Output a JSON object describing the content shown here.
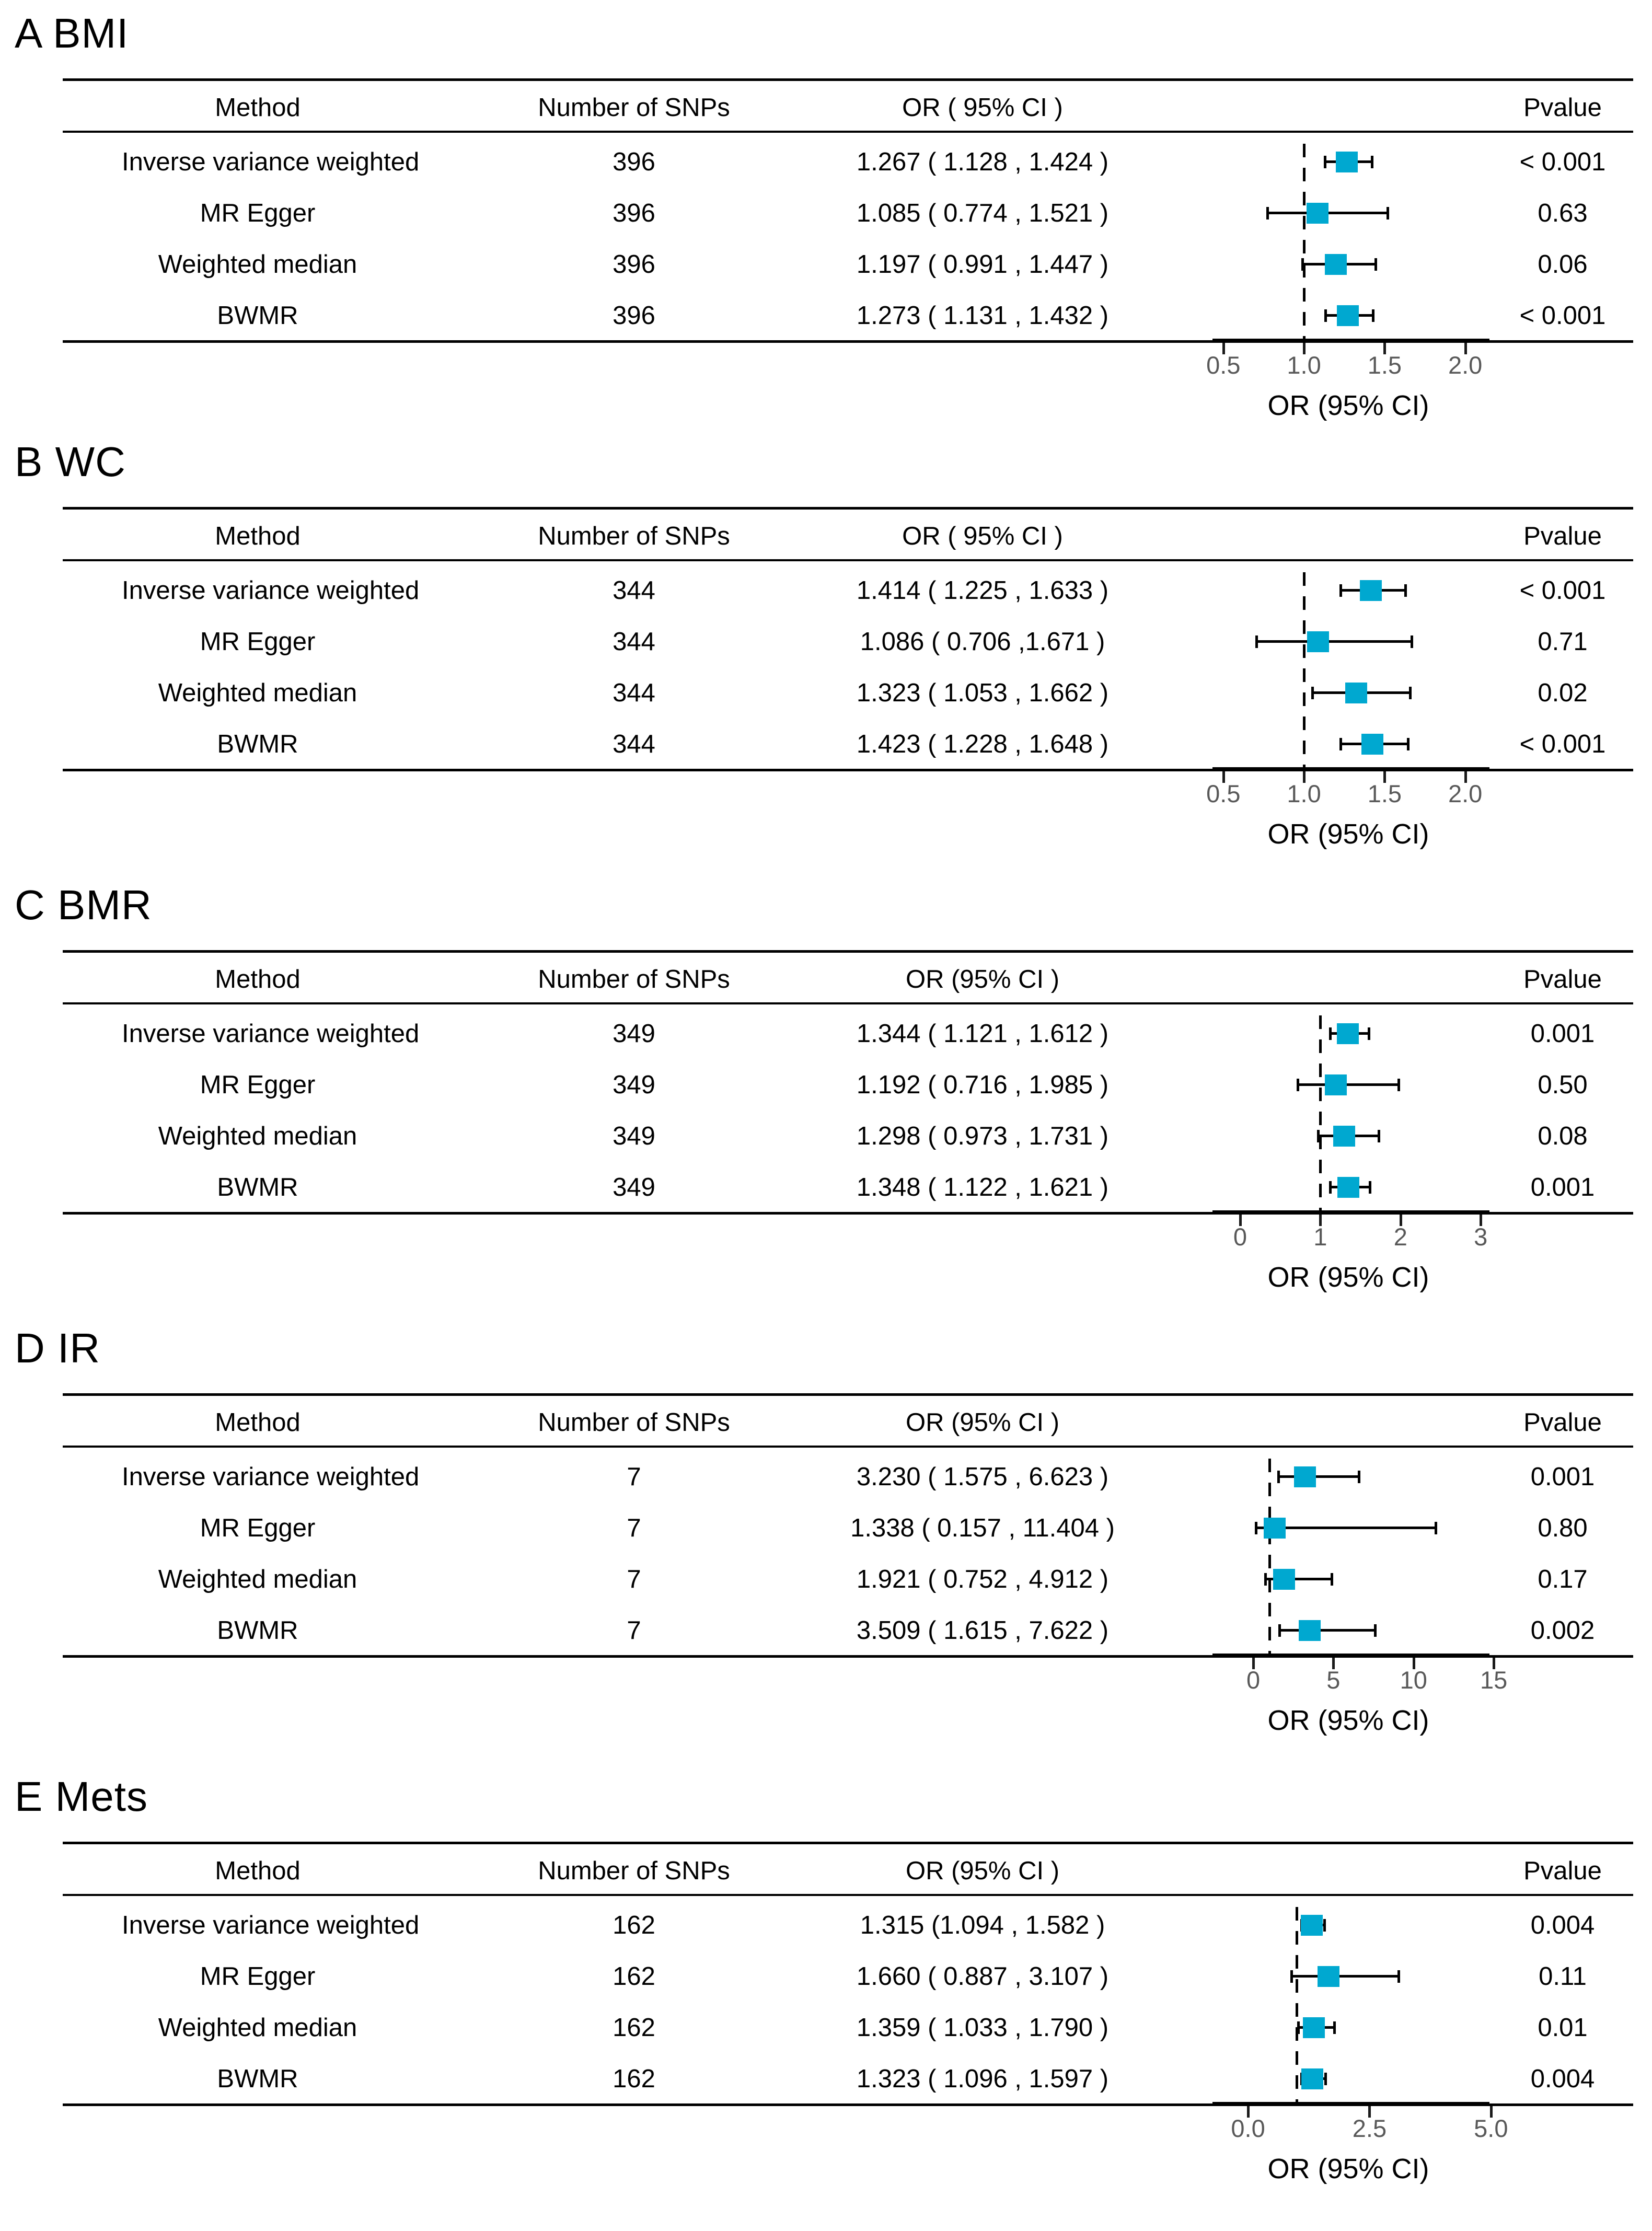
{
  "figure": {
    "background": "#ffffff",
    "accent_color": "#00a8d0",
    "tick_label_color": "#595959",
    "line_color": "#000000"
  },
  "chart_data": [
    {
      "id": "bmi",
      "type": "forest",
      "title": "A BMI",
      "headers": {
        "method": "Method",
        "snps": "Number of SNPs",
        "or": "OR ( 95% CI )",
        "pvalue": "Pvalue"
      },
      "rows": [
        {
          "method": "Inverse variance weighted",
          "snps": "396",
          "or_text": "1.267 ( 1.128 , 1.424 )",
          "or": 1.267,
          "lo": 1.128,
          "hi": 1.424,
          "pvalue": "< 0.001"
        },
        {
          "method": "MR Egger",
          "snps": "396",
          "or_text": "1.085 ( 0.774 , 1.521 )",
          "or": 1.085,
          "lo": 0.774,
          "hi": 1.521,
          "pvalue": "0.63"
        },
        {
          "method": "Weighted median",
          "snps": "396",
          "or_text": "1.197 ( 0.991 , 1.447 )",
          "or": 1.197,
          "lo": 0.991,
          "hi": 1.447,
          "pvalue": "0.06"
        },
        {
          "method": "BWMR",
          "snps": "396",
          "or_text": "1.273 ( 1.131 , 1.432 )",
          "or": 1.273,
          "lo": 1.131,
          "hi": 1.432,
          "pvalue": "< 0.001"
        }
      ],
      "axis": {
        "xlim": [
          0.4,
          2.28
        ],
        "refline": 1,
        "xlabel": "OR (95% CI)",
        "ticks": [
          {
            "label": "0.5",
            "value": 0.5
          },
          {
            "label": "1.0",
            "value": 1
          },
          {
            "label": "1.5",
            "value": 1.5
          },
          {
            "label": "2.0",
            "value": 2
          }
        ]
      }
    },
    {
      "id": "wc",
      "type": "forest",
      "title": "B WC",
      "headers": {
        "method": "Method",
        "snps": "Number of SNPs",
        "or": "OR ( 95% CI )",
        "pvalue": "Pvalue"
      },
      "rows": [
        {
          "method": "Inverse variance weighted",
          "snps": "344",
          "or_text": "1.414 ( 1.225 , 1.633 )",
          "or": 1.414,
          "lo": 1.225,
          "hi": 1.633,
          "pvalue": "< 0.001"
        },
        {
          "method": "MR Egger",
          "snps": "344",
          "or_text": "1.086 ( 0.706 ,1.671 )",
          "or": 1.086,
          "lo": 0.706,
          "hi": 1.671,
          "pvalue": "0.71"
        },
        {
          "method": "Weighted median",
          "snps": "344",
          "or_text": "1.323 ( 1.053 , 1.662 )",
          "or": 1.323,
          "lo": 1.053,
          "hi": 1.662,
          "pvalue": "0.02"
        },
        {
          "method": "BWMR",
          "snps": "344",
          "or_text": "1.423 ( 1.228 , 1.648 )",
          "or": 1.423,
          "lo": 1.228,
          "hi": 1.648,
          "pvalue": "< 0.001"
        }
      ],
      "axis": {
        "xlim": [
          0.4,
          2.28
        ],
        "refline": 1,
        "xlabel": "OR (95% CI)",
        "ticks": [
          {
            "label": "0.5",
            "value": 0.5
          },
          {
            "label": "1.0",
            "value": 1
          },
          {
            "label": "1.5",
            "value": 1.5
          },
          {
            "label": "2.0",
            "value": 2
          }
        ]
      }
    },
    {
      "id": "bmr",
      "type": "forest",
      "title": "C BMR",
      "headers": {
        "method": "Method",
        "snps": "Number of SNPs",
        "or": "OR (95% CI )",
        "pvalue": "Pvalue"
      },
      "rows": [
        {
          "method": "Inverse variance weighted",
          "snps": "349",
          "or_text": "1.344 ( 1.121 , 1.612 )",
          "or": 1.344,
          "lo": 1.121,
          "hi": 1.612,
          "pvalue": "0.001"
        },
        {
          "method": "MR Egger",
          "snps": "349",
          "or_text": "1.192 ( 0.716 , 1.985 )",
          "or": 1.192,
          "lo": 0.716,
          "hi": 1.985,
          "pvalue": "0.50"
        },
        {
          "method": "Weighted median",
          "snps": "349",
          "or_text": "1.298 ( 0.973 , 1.731 )",
          "or": 1.298,
          "lo": 0.973,
          "hi": 1.731,
          "pvalue": "0.08"
        },
        {
          "method": "BWMR",
          "snps": "349",
          "or_text": "1.348 ( 1.122 , 1.621 )",
          "or": 1.348,
          "lo": 1.122,
          "hi": 1.621,
          "pvalue": "0.001"
        }
      ],
      "axis": {
        "xlim": [
          -0.41,
          3.37
        ],
        "refline": 1,
        "xlabel": "OR (95% CI)",
        "ticks": [
          {
            "label": "0",
            "value": 0
          },
          {
            "label": "1",
            "value": 1
          },
          {
            "label": "2",
            "value": 2
          },
          {
            "label": "3",
            "value": 3
          }
        ]
      }
    },
    {
      "id": "ir",
      "type": "forest",
      "title": "D IR",
      "headers": {
        "method": "Method",
        "snps": "Number of SNPs",
        "or": "OR (95% CI )",
        "pvalue": "Pvalue"
      },
      "rows": [
        {
          "method": "Inverse variance weighted",
          "snps": "7",
          "or_text": "3.230 ( 1.575 , 6.623 )",
          "or": 3.23,
          "lo": 1.575,
          "hi": 6.623,
          "pvalue": "0.001"
        },
        {
          "method": "MR Egger",
          "snps": "7",
          "or_text": "1.338 ( 0.157 , 11.404 )",
          "or": 1.338,
          "lo": 0.157,
          "hi": 11.404,
          "pvalue": "0.80"
        },
        {
          "method": "Weighted median",
          "snps": "7",
          "or_text": "1.921 ( 0.752 , 4.912 )",
          "or": 1.921,
          "lo": 0.752,
          "hi": 4.912,
          "pvalue": "0.17"
        },
        {
          "method": "BWMR",
          "snps": "7",
          "or_text": "3.509 ( 1.615 , 7.622 )",
          "or": 3.509,
          "lo": 1.615,
          "hi": 7.622,
          "pvalue": "0.002"
        }
      ],
      "axis": {
        "xlim": [
          -2.87,
          16.04
        ],
        "refline": 1,
        "xlabel": "OR (95% CI)",
        "ticks": [
          {
            "label": "0",
            "value": 0
          },
          {
            "label": "5",
            "value": 5
          },
          {
            "label": "10",
            "value": 10
          },
          {
            "label": "15",
            "value": 15
          }
        ]
      }
    },
    {
      "id": "mets",
      "type": "forest",
      "title": "E Mets",
      "headers": {
        "method": "Method",
        "snps": "Number of SNPs",
        "or": "OR (95% CI )",
        "pvalue": "Pvalue"
      },
      "rows": [
        {
          "method": "Inverse variance weighted",
          "snps": "162",
          "or_text": "1.315 (1.094 , 1.582 )",
          "or": 1.315,
          "lo": 1.094,
          "hi": 1.582,
          "pvalue": "0.004"
        },
        {
          "method": "MR Egger",
          "snps": "162",
          "or_text": "1.660 ( 0.887 , 3.107 )",
          "or": 1.66,
          "lo": 0.887,
          "hi": 3.107,
          "pvalue": "0.11"
        },
        {
          "method": "Weighted median",
          "snps": "162",
          "or_text": "1.359 ( 1.033 , 1.790 )",
          "or": 1.359,
          "lo": 1.033,
          "hi": 1.79,
          "pvalue": "0.01"
        },
        {
          "method": "BWMR",
          "snps": "162",
          "or_text": "1.323 ( 1.096 , 1.597 )",
          "or": 1.323,
          "lo": 1.096,
          "hi": 1.597,
          "pvalue": "0.004"
        }
      ],
      "axis": {
        "xlim": [
          -0.84,
          5.4
        ],
        "refline": 1,
        "xlabel": "OR (95% CI)",
        "ticks": [
          {
            "label": "0.0",
            "value": 0
          },
          {
            "label": "2.5",
            "value": 2.5
          },
          {
            "label": "5.0",
            "value": 5
          }
        ]
      }
    }
  ]
}
